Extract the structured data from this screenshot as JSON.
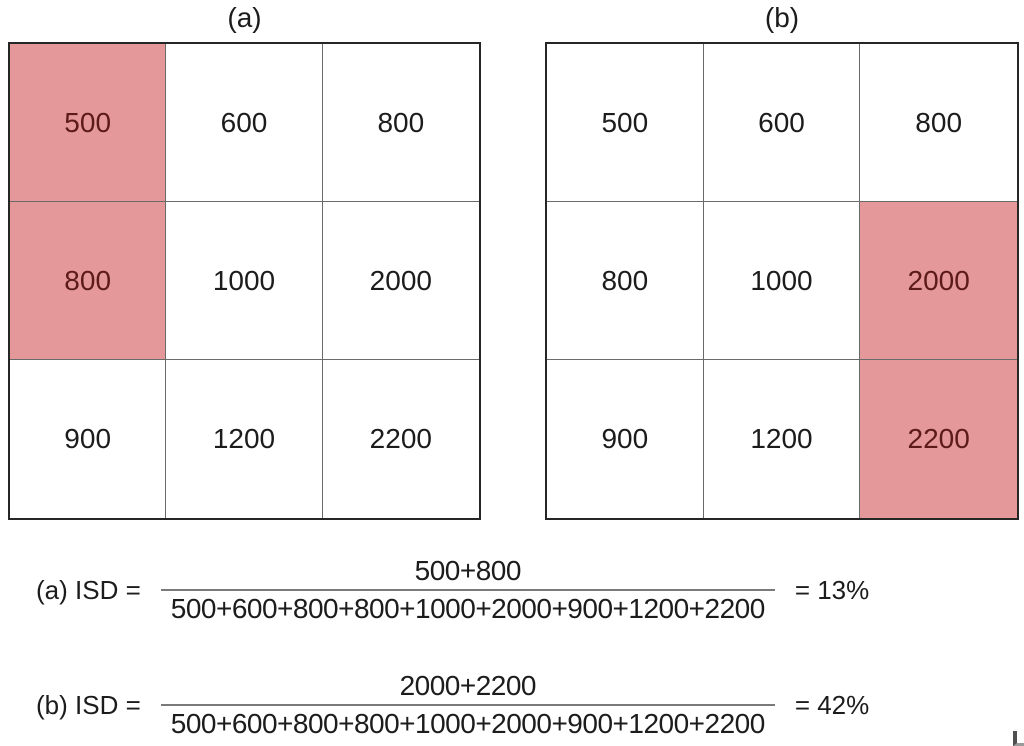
{
  "colors": {
    "highlight_bg": "#e59899",
    "highlight_text": "#5c1a1a",
    "text": "#1c1c1c",
    "grid_border_outer": "#262626",
    "grid_border_inner": "#6a6a6a",
    "fraction_bar": "#7a7a7a"
  },
  "grids": [
    {
      "label": "(a)",
      "rows": [
        [
          {
            "v": "500",
            "hl": true
          },
          {
            "v": "600",
            "hl": false
          },
          {
            "v": "800",
            "hl": false
          }
        ],
        [
          {
            "v": "800",
            "hl": true
          },
          {
            "v": "1000",
            "hl": false
          },
          {
            "v": "2000",
            "hl": false
          }
        ],
        [
          {
            "v": "900",
            "hl": false
          },
          {
            "v": "1200",
            "hl": false
          },
          {
            "v": "2200",
            "hl": false
          }
        ]
      ]
    },
    {
      "label": "(b)",
      "rows": [
        [
          {
            "v": "500",
            "hl": false
          },
          {
            "v": "600",
            "hl": false
          },
          {
            "v": "800",
            "hl": false
          }
        ],
        [
          {
            "v": "800",
            "hl": false
          },
          {
            "v": "1000",
            "hl": false
          },
          {
            "v": "2000",
            "hl": true
          }
        ],
        [
          {
            "v": "900",
            "hl": false
          },
          {
            "v": "1200",
            "hl": false
          },
          {
            "v": "2200",
            "hl": true
          }
        ]
      ]
    }
  ],
  "formulas": [
    {
      "label": "(a) ISD =",
      "numerator": "500+800",
      "denominator": "500+600+800+800+1000+2000+900+1200+2200",
      "result": "= 13%"
    },
    {
      "label": "(b) ISD =",
      "numerator": "2000+2200",
      "denominator": "500+600+800+800+1000+2000+900+1200+2200",
      "result": "= 42%"
    }
  ]
}
